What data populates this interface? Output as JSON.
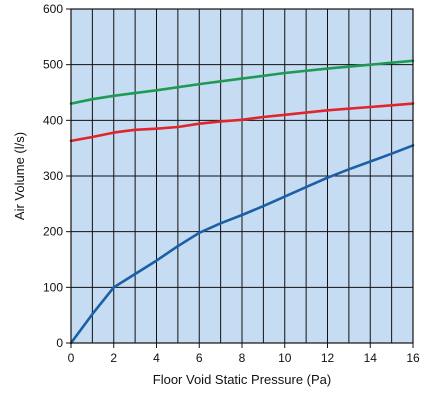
{
  "chart_data": {
    "type": "line",
    "title": "",
    "xlabel": "Floor Void Static Pressure (Pa)",
    "ylabel": "Air Volume (l/s)",
    "xlim": [
      0,
      16
    ],
    "ylim": [
      0,
      600
    ],
    "x_ticks": [
      0,
      2,
      4,
      6,
      8,
      10,
      12,
      14,
      16
    ],
    "y_ticks": [
      0,
      100,
      200,
      300,
      400,
      500,
      600
    ],
    "x_tick_labels": [
      "0",
      "2",
      "4",
      "6",
      "8",
      "10",
      "12",
      "14",
      "16"
    ],
    "y_tick_labels": [
      "0",
      "100",
      "200",
      "300",
      "400",
      "500",
      "600"
    ],
    "grid": true,
    "x_minor_grid_step": 1,
    "plot_background": "#c5dcf2",
    "grid_color": "#111111",
    "series": [
      {
        "color": "#1f9a55",
        "x": [
          0,
          1,
          2,
          4,
          6,
          8,
          10,
          12,
          14,
          16
        ],
        "y": [
          430,
          438,
          444,
          454,
          465,
          475,
          485,
          493,
          500,
          507
        ]
      },
      {
        "color": "#e0262c",
        "x": [
          0,
          1,
          2,
          3,
          4,
          5,
          6,
          7,
          8,
          9,
          10,
          12,
          14,
          16
        ],
        "y": [
          363,
          370,
          378,
          383,
          385,
          388,
          394,
          398,
          401,
          406,
          410,
          418,
          424,
          430
        ]
      },
      {
        "color": "#1c5fa6",
        "x": [
          0,
          1,
          2,
          3,
          4,
          5,
          6,
          7,
          8,
          9,
          10,
          11,
          12,
          13,
          14,
          15,
          16
        ],
        "y": [
          0,
          52,
          100,
          124,
          148,
          174,
          198,
          215,
          230,
          246,
          263,
          280,
          297,
          312,
          326,
          340,
          355
        ]
      }
    ]
  }
}
